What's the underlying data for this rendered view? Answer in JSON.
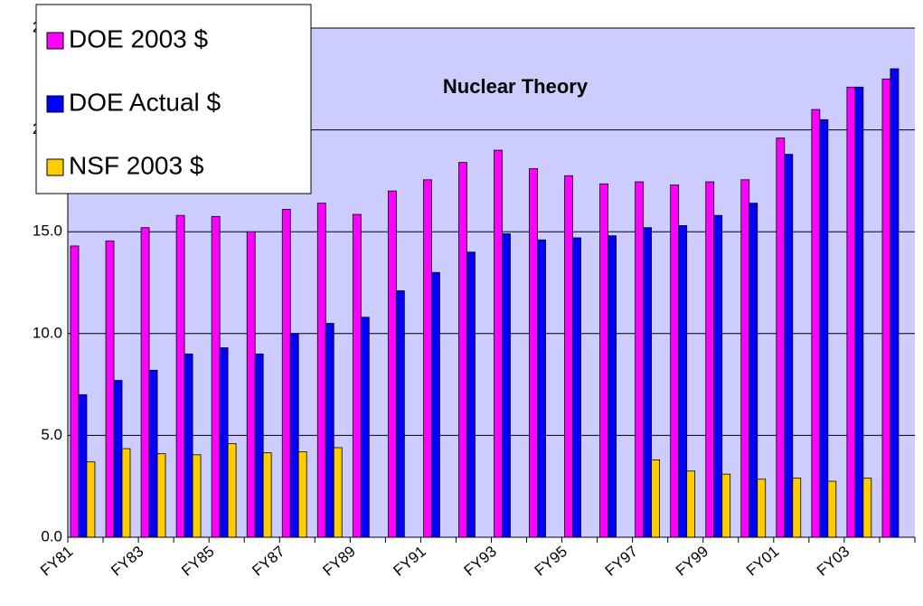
{
  "chart_data": {
    "type": "bar",
    "title": "Nuclear Theory",
    "categories": [
      "FY81",
      null,
      "FY83",
      null,
      "FY85",
      null,
      "FY87",
      null,
      "FY89",
      null,
      "FY91",
      null,
      "FY93",
      null,
      "FY95",
      null,
      "FY97",
      null,
      "FY99",
      null,
      "FY01",
      null,
      "FY03",
      null
    ],
    "series": [
      {
        "name": "DOE 2003 $",
        "color": "#ff00ff",
        "values": [
          14.3,
          14.55,
          15.2,
          15.8,
          15.75,
          15.0,
          16.1,
          16.4,
          15.85,
          17.0,
          17.55,
          18.4,
          19.0,
          18.1,
          17.75,
          17.35,
          17.45,
          17.3,
          17.45,
          17.55,
          19.6,
          21.0,
          22.1,
          22.5
        ]
      },
      {
        "name": "DOE Actual $",
        "color": "#0000ff",
        "values": [
          7.0,
          7.7,
          8.2,
          9.0,
          9.3,
          9.0,
          10.0,
          10.5,
          10.8,
          12.1,
          13.0,
          14.0,
          14.9,
          14.6,
          14.7,
          14.8,
          15.2,
          15.3,
          15.8,
          16.4,
          18.8,
          20.5,
          22.1,
          23.0
        ]
      },
      {
        "name": "NSF 2003 $",
        "color": "#ffcc00",
        "values": [
          3.7,
          4.35,
          4.1,
          4.05,
          4.6,
          4.15,
          4.2,
          4.4,
          null,
          null,
          null,
          null,
          null,
          null,
          null,
          null,
          3.8,
          3.25,
          3.1,
          2.85,
          2.9,
          2.75,
          2.9,
          null
        ]
      }
    ],
    "ylim": [
      0,
      25
    ],
    "yticks": [
      {
        "value": 0,
        "label": "0.0"
      },
      {
        "value": 5,
        "label": "5.0"
      },
      {
        "value": 10,
        "label": "10.0"
      },
      {
        "value": 15,
        "label": "15.0"
      },
      {
        "value": 20,
        "label": "20.0"
      },
      {
        "value": 25,
        "label": "25.0"
      }
    ],
    "grid": true,
    "legend": "upper left"
  }
}
